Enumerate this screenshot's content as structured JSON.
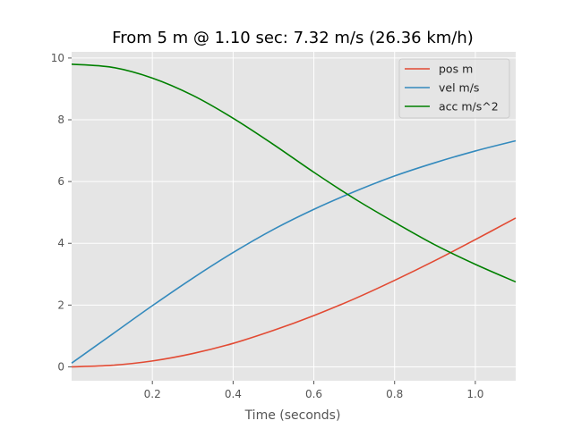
{
  "chart_data": {
    "type": "line",
    "title": "From 5 m @ 1.10 sec: 7.32 m/s (26.36 km/h)",
    "xlabel": "Time (seconds)",
    "ylabel": "",
    "xlim": [
      0.0,
      1.1
    ],
    "ylim": [
      -0.45,
      10.2
    ],
    "xticks": [
      0.2,
      0.4,
      0.6,
      0.8,
      1.0
    ],
    "xtick_labels": [
      "0.2",
      "0.4",
      "0.6",
      "0.8",
      "1.0"
    ],
    "yticks": [
      0,
      2,
      4,
      6,
      8,
      10
    ],
    "ytick_labels": [
      "0",
      "2",
      "4",
      "6",
      "8",
      "10"
    ],
    "grid": true,
    "legend_position": "top-right",
    "x": [
      0.0,
      0.1,
      0.2,
      0.3,
      0.4,
      0.5,
      0.6,
      0.7,
      0.8,
      0.9,
      1.0,
      1.1
    ],
    "series": [
      {
        "name": "pos m",
        "color": "#E24A33",
        "values": [
          0.0,
          0.05,
          0.19,
          0.43,
          0.76,
          1.18,
          1.66,
          2.2,
          2.8,
          3.44,
          4.12,
          4.82
        ]
      },
      {
        "name": "vel m/s",
        "color": "#348ABD",
        "values": [
          0.12,
          1.05,
          1.98,
          2.87,
          3.7,
          4.45,
          5.1,
          5.67,
          6.18,
          6.61,
          6.99,
          7.32
        ]
      },
      {
        "name": "acc m/s^2",
        "color": "#008000",
        "values": [
          9.8,
          9.7,
          9.35,
          8.79,
          8.05,
          7.2,
          6.3,
          5.45,
          4.68,
          3.95,
          3.32,
          2.75
        ]
      }
    ]
  }
}
